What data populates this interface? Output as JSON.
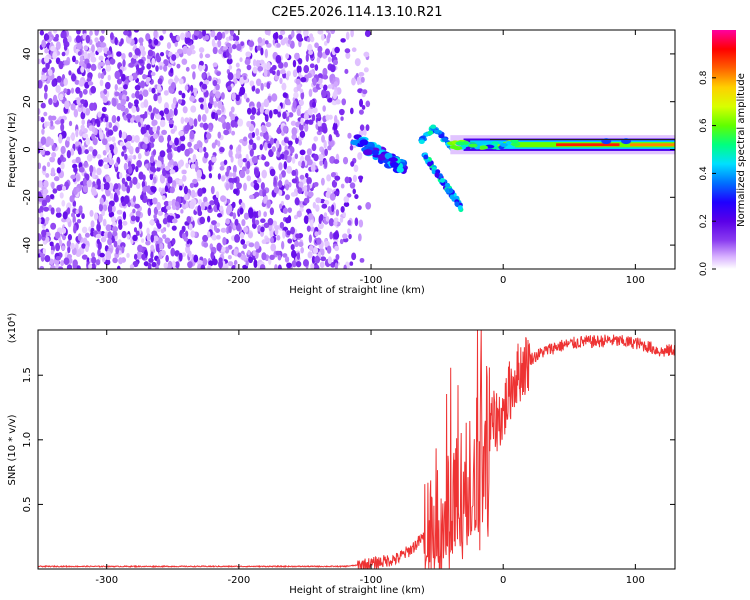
{
  "figure": {
    "title": "C2E5.2026.114.13.10.R21"
  },
  "chart_data": [
    {
      "type": "heatmap",
      "name": "spectrogram",
      "title": "C2E5.2026.114.13.10.R21",
      "xlabel": "Height of straight line (km)",
      "ylabel": "Frequency (Hz)",
      "xlim": [
        -352,
        130
      ],
      "ylim": [
        -50,
        50
      ],
      "xticks": [
        -300,
        -200,
        -100,
        0,
        100
      ],
      "yticks": [
        -40,
        -20,
        0,
        20,
        40
      ],
      "xtick_labels": [
        "-300",
        "-200",
        "-100",
        "0",
        "100"
      ],
      "ytick_labels": [
        "-40",
        "-20",
        "0",
        "20",
        "40"
      ],
      "colorbar": {
        "label": "Normalized spectral amplitude",
        "range": [
          0,
          1
        ],
        "ticks": [
          0.0,
          0.2,
          0.4,
          0.6,
          0.8
        ],
        "tick_labels": [
          "0.0",
          "0.2",
          "0.4",
          "0.6",
          "0.8"
        ],
        "colormap": [
          "#ffffff",
          "#d9b3ff",
          "#8a3cf0",
          "#5a00e8",
          "#1f00ff",
          "#0070ff",
          "#00e0ff",
          "#00ff80",
          "#60ff00",
          "#d8ff00",
          "#ffd000",
          "#ff6000",
          "#ff0000",
          "#ff00a0"
        ]
      },
      "features": [
        {
          "label": "noise region",
          "x_range": [
            -352,
            -110
          ],
          "f_range": [
            -50,
            50
          ],
          "amplitude": 0.15
        },
        {
          "label": "main carrier",
          "x_range": [
            -60,
            130
          ],
          "f_center": 2,
          "amplitude": 0.9
        },
        {
          "label": "diverging branch",
          "x_start": -60,
          "x_end": -32,
          "f_start": -2,
          "f_end": -24,
          "amplitude": 0.5
        },
        {
          "label": "early branch",
          "x_start": -112,
          "x_end": -75,
          "f_start": 4,
          "f_end": -8,
          "amplitude": 0.45
        }
      ]
    },
    {
      "type": "line",
      "name": "snr",
      "xlabel": "Height of straight line (km)",
      "ylabel": "SNR (10 * v/v)",
      "y_exponent_label": "(x10⁴)",
      "xlim": [
        -352,
        130
      ],
      "ylim": [
        0,
        1.85
      ],
      "xticks": [
        -300,
        -200,
        -100,
        0,
        100
      ],
      "yticks": [
        0.5,
        1.0,
        1.5
      ],
      "xtick_labels": [
        "-300",
        "-200",
        "-100",
        "0",
        "100"
      ],
      "ytick_labels": [
        "0.5",
        "1.0",
        "1.5"
      ],
      "series": [
        {
          "name": "SNR",
          "color": "#ee3333",
          "x": [
            -352,
            -300,
            -250,
            -200,
            -150,
            -120,
            -100,
            -90,
            -80,
            -70,
            -60,
            -50,
            -40,
            -30,
            -20,
            -10,
            0,
            5,
            10,
            20,
            30,
            40,
            50,
            60,
            70,
            80,
            90,
            100,
            110,
            120,
            130
          ],
          "y": [
            0.02,
            0.02,
            0.02,
            0.02,
            0.02,
            0.02,
            0.04,
            0.06,
            0.08,
            0.15,
            0.25,
            0.4,
            0.5,
            0.62,
            0.88,
            1.1,
            1.2,
            1.38,
            1.5,
            1.62,
            1.68,
            1.72,
            1.74,
            1.76,
            1.76,
            1.77,
            1.76,
            1.75,
            1.72,
            1.68,
            1.7
          ]
        }
      ]
    }
  ]
}
